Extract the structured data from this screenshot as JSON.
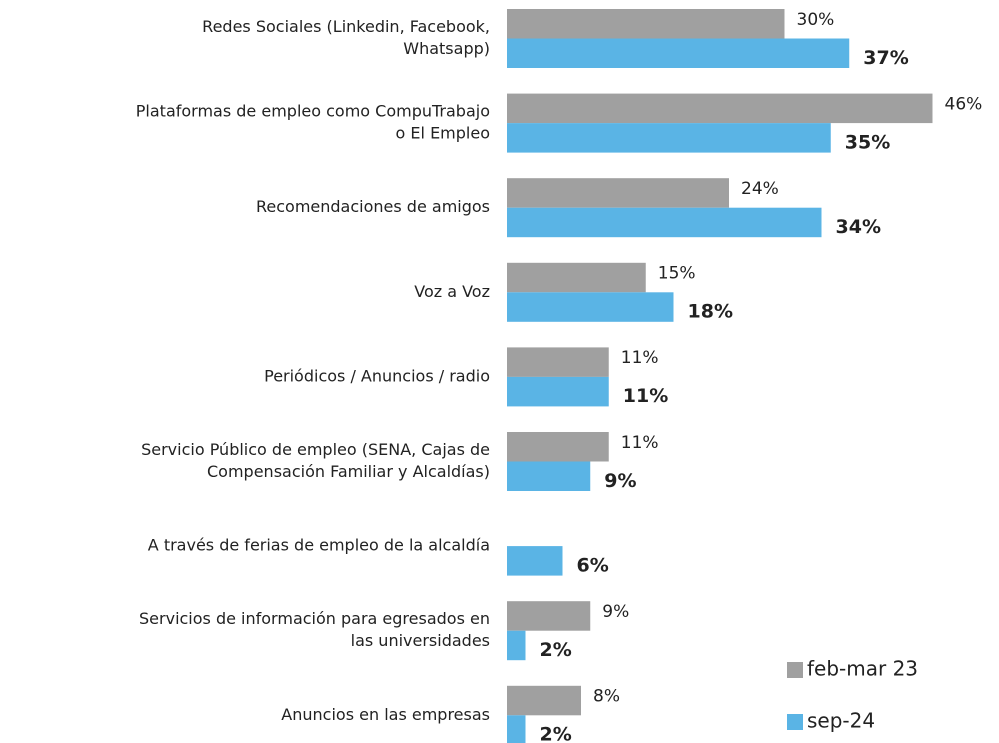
{
  "chart_data": {
    "type": "bar",
    "orientation": "horizontal",
    "categories": [
      [
        "Redes Sociales (Linkedin, Facebook,",
        "Whatsapp)"
      ],
      [
        "Plataformas de empleo como CompuTrabajo",
        "o El Empleo"
      ],
      [
        "Recomendaciones de amigos"
      ],
      [
        "Voz a Voz"
      ],
      [
        "Periódicos / Anuncios / radio"
      ],
      [
        "Servicio Público de empleo (SENA, Cajas de",
        "Compensación Familiar y Alcaldías)"
      ],
      [
        "A través de ferias de empleo de la alcaldía"
      ],
      [
        "Servicios de información para egresados en",
        "las universidades"
      ],
      [
        "Anuncios en las empresas"
      ]
    ],
    "series": [
      {
        "name": "feb-mar 23",
        "color": "#a0a0a0",
        "values": [
          30,
          46,
          24,
          15,
          11,
          11,
          null,
          9,
          8
        ],
        "value_labels": [
          "30%",
          "46%",
          "24%",
          "15%",
          "11%",
          "11%",
          null,
          "9%",
          "8%"
        ]
      },
      {
        "name": "sep-24",
        "color": "#5ab4e5",
        "values": [
          37,
          35,
          34,
          18,
          11,
          9,
          6,
          2,
          2
        ],
        "value_labels": [
          "37%",
          "35%",
          "34%",
          "18%",
          "11%",
          "9%",
          "6%",
          "2%",
          "2%"
        ]
      }
    ],
    "legend": "bottom-right"
  }
}
